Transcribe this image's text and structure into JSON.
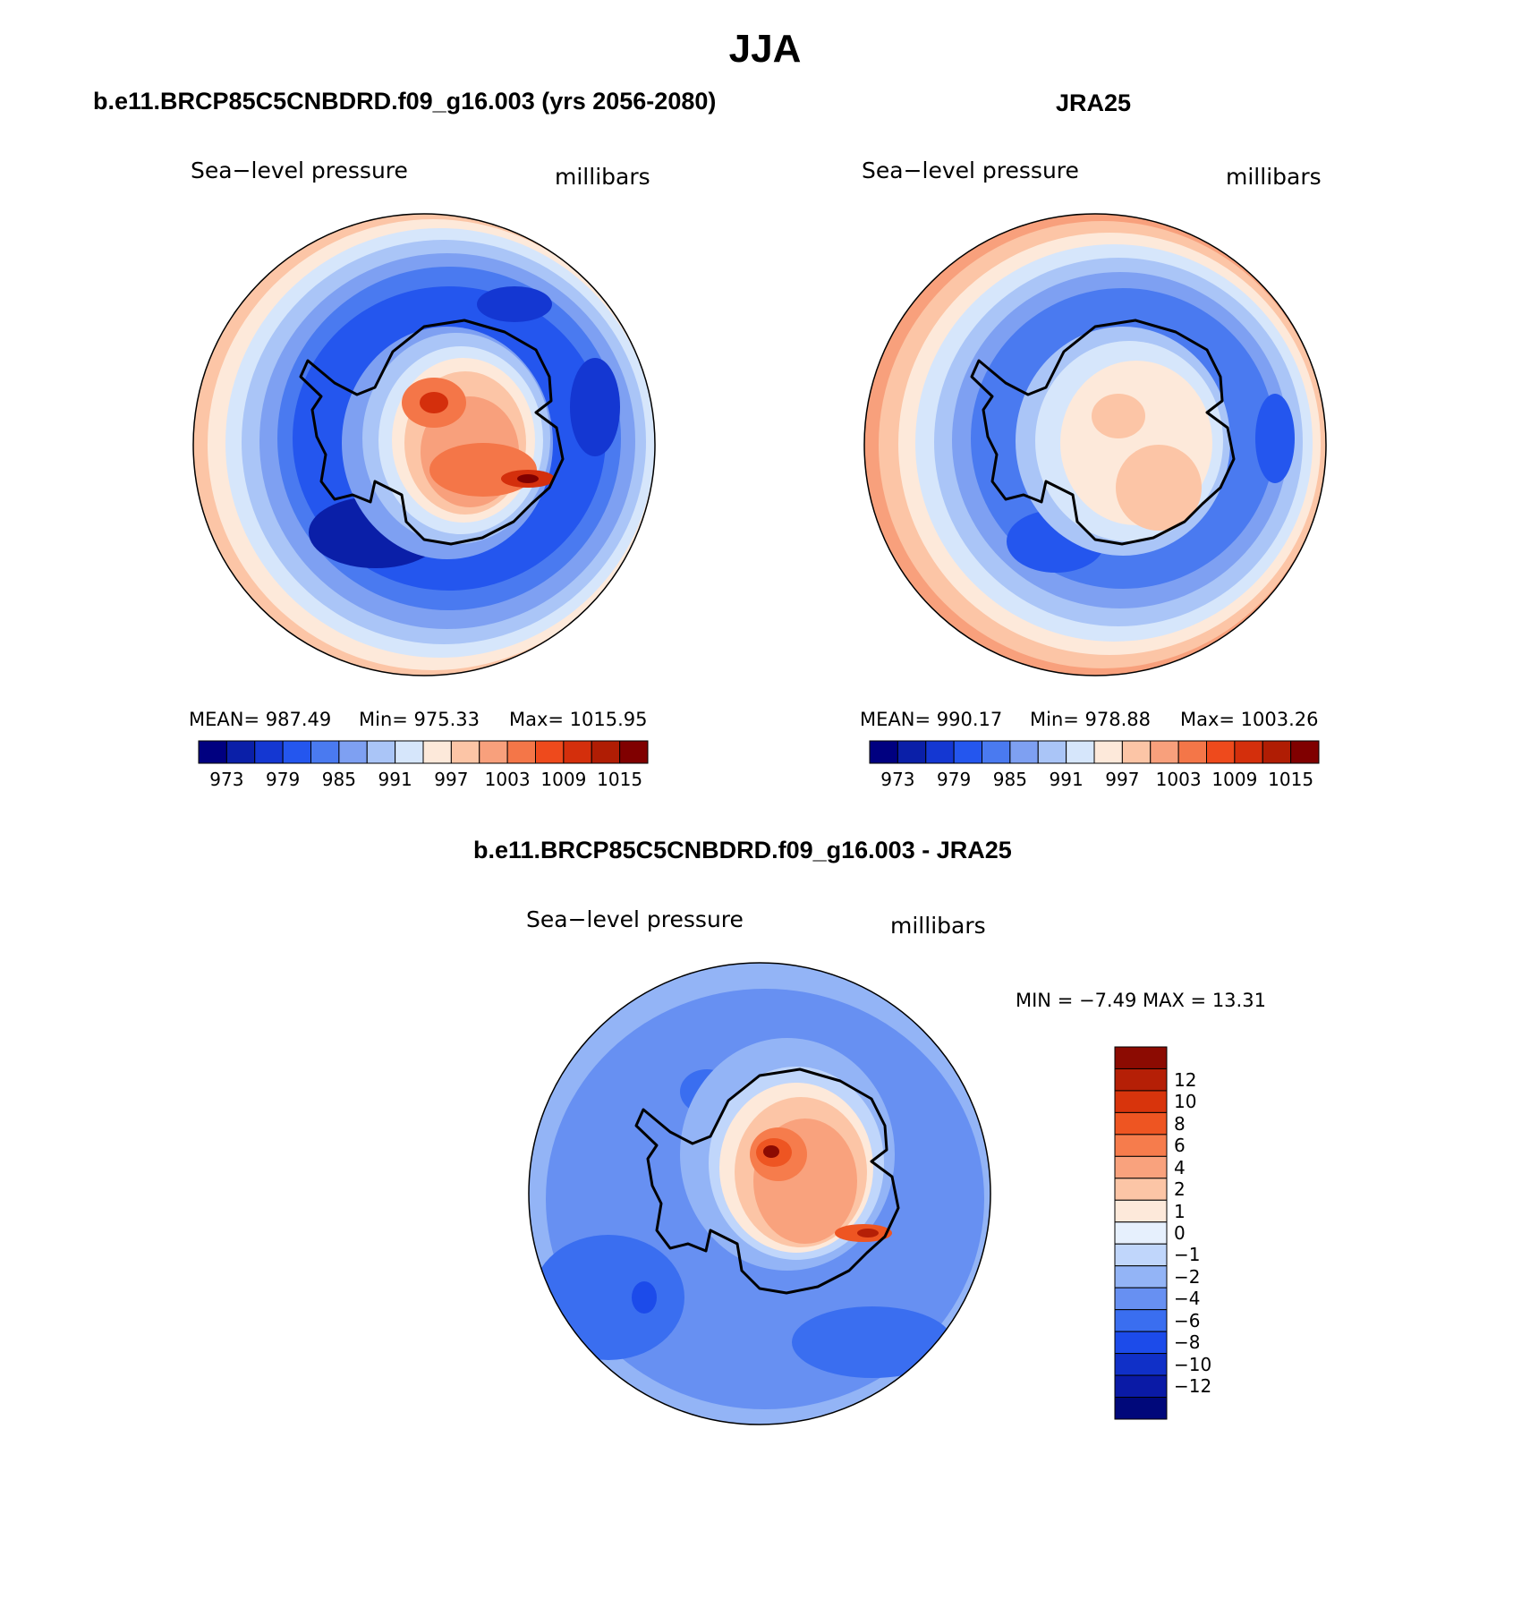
{
  "figure": {
    "season_title": "JJA"
  },
  "panels": [
    {
      "id": "model",
      "title": "b.e11.BRCP85C5CNBDRD.f09_g16.003 (yrs 2056-2080)",
      "variable": "Sea−level pressure",
      "units": "millibars",
      "mean_text": "MEAN=  987.49",
      "min_text": "Min=  975.33",
      "max_text": "Max=  1015.95"
    },
    {
      "id": "obs",
      "title": "JRA25",
      "variable": "Sea−level pressure",
      "units": "millibars",
      "mean_text": "MEAN=  990.17",
      "min_text": "Min=  978.88",
      "max_text": "Max=  1003.26"
    },
    {
      "id": "diff",
      "title": "b.e11.BRCP85C5CNBDRD.f09_g16.003 - JRA25",
      "variable": "Sea−level pressure",
      "units": "millibars",
      "minmax_text": "MIN =   −7.49  MAX =   13.31"
    }
  ],
  "colors": {
    "abs_scale": [
      "#000080",
      "#0a1fa8",
      "#1437d2",
      "#2456ee",
      "#4a7af0",
      "#7ea0f2",
      "#aac5f7",
      "#d6e6fb",
      "#fde9da",
      "#fcc5a6",
      "#f8a07c",
      "#f47648",
      "#ee4a1c",
      "#d42f0c",
      "#b01d04",
      "#800000"
    ],
    "diff_scale": [
      "#00087a",
      "#0a1aa6",
      "#1030c8",
      "#1c4bea",
      "#3a6ef0",
      "#6790f2",
      "#93b4f6",
      "#c0d6fb",
      "#e6f0fd",
      "#fde9da",
      "#fcc5a6",
      "#f9a27d",
      "#f67c4c",
      "#ee5522",
      "#d8340c",
      "#b51f06",
      "#8c0b02"
    ]
  },
  "chart_data": [
    {
      "type": "heatmap",
      "title": "b.e11.BRCP85C5CNBDRD.f09_g16.003 (yrs 2056-2080)",
      "projection": "south polar stereographic",
      "variable": "Sea-level pressure",
      "units": "millibars",
      "mean": 987.49,
      "min": 975.33,
      "max": 1015.95,
      "colorbar_levels": [
        "973",
        "979",
        "985",
        "991",
        "997",
        "1003",
        "1009",
        "1015"
      ]
    },
    {
      "type": "heatmap",
      "title": "JRA25",
      "projection": "south polar stereographic",
      "variable": "Sea-level pressure",
      "units": "millibars",
      "mean": 990.17,
      "min": 978.88,
      "max": 1003.26,
      "colorbar_levels": [
        "973",
        "979",
        "985",
        "991",
        "997",
        "1003",
        "1009",
        "1015"
      ]
    },
    {
      "type": "heatmap",
      "title": "b.e11.BRCP85C5CNBDRD.f09_g16.003 - JRA25",
      "projection": "south polar stereographic",
      "variable": "Sea-level pressure",
      "units": "millibars",
      "min": -7.49,
      "max": 13.31,
      "colorbar_levels": [
        "12",
        "10",
        "8",
        "6",
        "4",
        "2",
        "1",
        "0",
        "−1",
        "−2",
        "−4",
        "−6",
        "−8",
        "−10",
        "−12"
      ]
    }
  ]
}
